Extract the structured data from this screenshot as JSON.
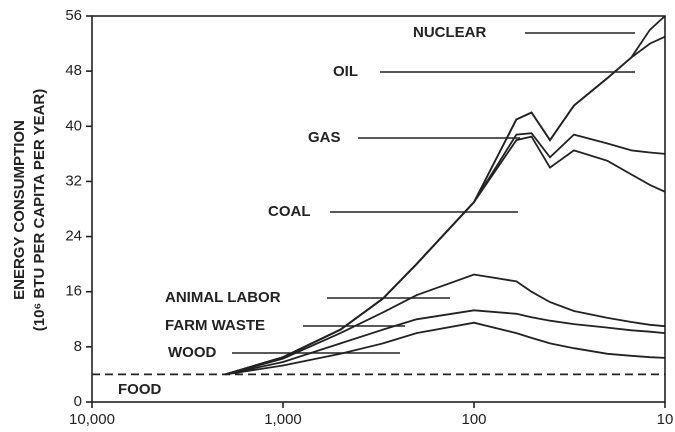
{
  "chart_data": {
    "type": "stacked-line",
    "y_label": [
      "ENERGY CONSUMPTION",
      "(10⁶ BTU PER CAPITA PER YEAR)"
    ],
    "x": [
      10000,
      2000,
      1000,
      500,
      300,
      200,
      100,
      60,
      50,
      40,
      30,
      20,
      15,
      12,
      10
    ],
    "xlim": [
      10000,
      10
    ],
    "xscale": "log",
    "xticks": [
      {
        "value": 10000,
        "label": "10,000"
      },
      {
        "value": 1000,
        "label": "1,000"
      },
      100,
      10
    ],
    "ylim": [
      0,
      56
    ],
    "yticks": [
      0,
      8,
      16,
      24,
      32,
      40,
      48,
      56
    ],
    "color": "#222222",
    "series": [
      {
        "name": "FOOD",
        "values": [
          4,
          4,
          4,
          4,
          4,
          4,
          4,
          4,
          4,
          4,
          4,
          4,
          4,
          4,
          4
        ]
      },
      {
        "name": "WOOD",
        "values": [
          null,
          0,
          1.3,
          3,
          4.5,
          6,
          7.5,
          6,
          5.3,
          4.5,
          3.8,
          3,
          2.7,
          2.5,
          2.4
        ]
      },
      {
        "name": "FARM WASTE",
        "values": [
          null,
          0,
          0.5,
          1.5,
          2,
          2,
          1.8,
          2.8,
          3,
          3.3,
          3.5,
          3.8,
          3.7,
          3.7,
          3.6
        ]
      },
      {
        "name": "ANIMAL LABOR",
        "values": [
          null,
          0,
          0.5,
          1.5,
          2.5,
          3.5,
          5.2,
          4.7,
          3.7,
          2.7,
          1.9,
          1.4,
          1.2,
          1,
          1
        ]
      },
      {
        "name": "COAL",
        "values": [
          null,
          0,
          0.2,
          0.5,
          2,
          4.5,
          10.5,
          20.5,
          22.5,
          19.5,
          23.3,
          22.8,
          21.4,
          20.3,
          19.5
        ]
      },
      {
        "name": "GAS",
        "values": [
          null,
          0,
          0,
          0,
          0,
          0,
          0,
          0.8,
          0.5,
          1.5,
          2.3,
          2.5,
          3.5,
          4.7,
          5.5
        ]
      },
      {
        "name": "OIL",
        "values": [
          null,
          0,
          0,
          0,
          0,
          0,
          0,
          2.2,
          3,
          2.5,
          4.2,
          9.5,
          13.5,
          15.8,
          17
        ]
      },
      {
        "name": "NUCLEAR",
        "values": [
          null,
          0,
          0,
          0,
          0,
          0,
          0,
          0,
          0,
          0,
          0,
          0,
          0,
          2,
          3
        ]
      }
    ]
  }
}
